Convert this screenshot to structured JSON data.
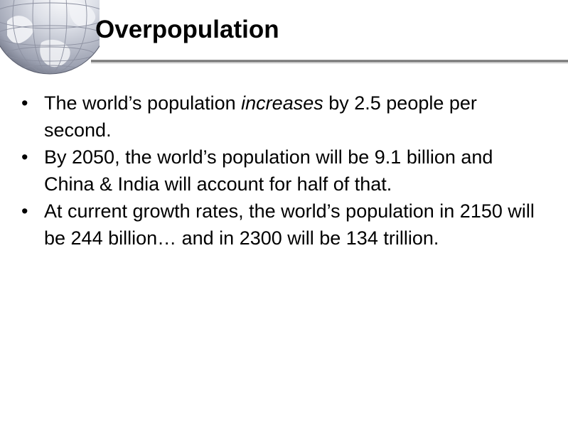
{
  "slide": {
    "title": "Overpopulation",
    "bullet_glyph": "•",
    "bullets": [
      {
        "before": "The world’s population ",
        "emphasis": "increases",
        "after": " by 2.5 people per second."
      },
      {
        "text": "By 2050, the world’s population will be 9.1 billion and China & India will account for half of that."
      },
      {
        "text": "At current growth rates, the world’s population in 2150 will be 244 billion… and in 2300 will be 134 trillion."
      }
    ]
  },
  "colors": {
    "background": "#ffffff",
    "text": "#000000",
    "title_rule": "#7a7a7a",
    "globe_ocean": "#c9ccd6",
    "globe_land": "#f4f4f6",
    "globe_grid": "#8c90a0"
  },
  "icons": {
    "globe": "globe-icon"
  }
}
